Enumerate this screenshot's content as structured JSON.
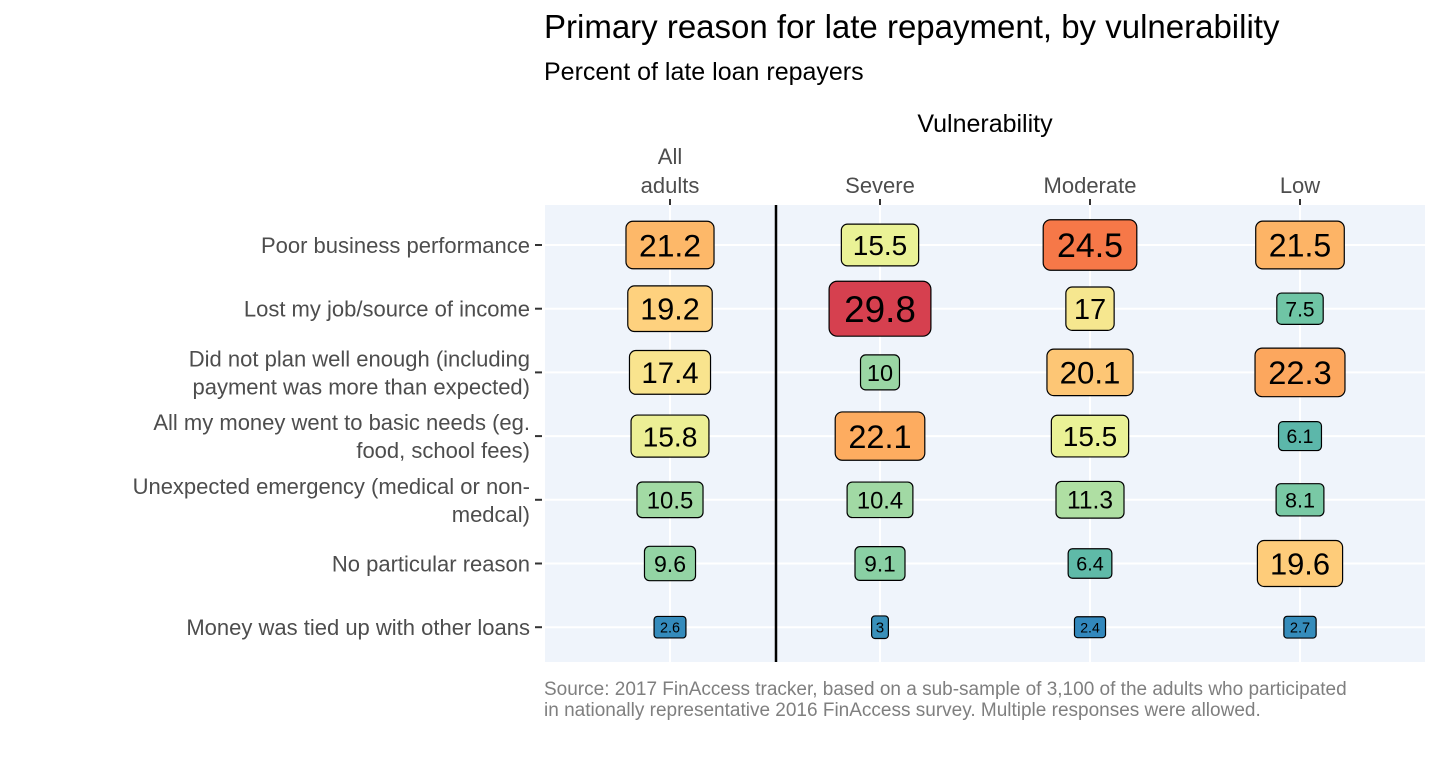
{
  "title": "Primary reason for late repayment, by vulnerability",
  "subtitle": "Percent of late loan repayers",
  "caption": "Source: 2017 FinAccess tracker, based on a sub-sample of 3,100 of the adults who participated in nationally representative 2016 FinAccess survey. Multiple responses were allowed.",
  "chart_data": {
    "type": "heatmap",
    "title": "Primary reason for late repayment, by vulnerability",
    "subtitle": "Percent of late loan repayers",
    "column_group_label": "Vulnerability",
    "columns": [
      {
        "label": [
          "All",
          "adults"
        ]
      },
      {
        "label": [
          "Severe"
        ]
      },
      {
        "label": [
          "Moderate"
        ]
      },
      {
        "label": [
          "Low"
        ]
      }
    ],
    "rows": [
      {
        "label": [
          "Poor business performance"
        ],
        "values": [
          21.2,
          15.5,
          24.5,
          21.5
        ]
      },
      {
        "label": [
          "Lost my job/source of income"
        ],
        "values": [
          19.2,
          29.8,
          17,
          7.5
        ]
      },
      {
        "label": [
          "Did not plan well enough (including",
          "payment was more than expected)"
        ],
        "values": [
          17.4,
          10,
          20.1,
          22.3
        ]
      },
      {
        "label": [
          "All my money went to basic needs (eg.",
          "food, school fees)"
        ],
        "values": [
          15.8,
          22.1,
          15.5,
          6.1
        ]
      },
      {
        "label": [
          "Unexpected emergency (medical or non-",
          "medcal)"
        ],
        "values": [
          10.5,
          10.4,
          11.3,
          8.1
        ]
      },
      {
        "label": [
          "No particular reason"
        ],
        "values": [
          9.6,
          9.1,
          6.4,
          19.6
        ]
      },
      {
        "label": [
          "Money was tied up with other loans"
        ],
        "values": [
          2.6,
          3,
          2.4,
          2.7
        ]
      }
    ],
    "color_scale": "Spectral (reversed)",
    "legend": "none",
    "grid": true,
    "panel_background": "#eff4fb",
    "separator_after_column": "All adults"
  }
}
